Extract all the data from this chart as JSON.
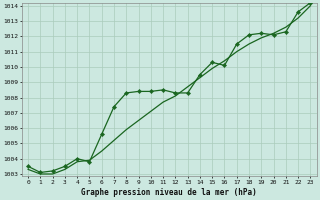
{
  "xlabel": "Graphe pression niveau de la mer (hPa)",
  "background_color": "#cce8e0",
  "grid_color": "#aaccbb",
  "line_color": "#1a6620",
  "marker_color": "#1a6620",
  "ylim_min": 1003,
  "ylim_max": 1014,
  "xlim_min": 0,
  "xlim_max": 23,
  "yticks": [
    1003,
    1004,
    1005,
    1006,
    1007,
    1008,
    1009,
    1010,
    1011,
    1012,
    1013,
    1014
  ],
  "xticks": [
    0,
    1,
    2,
    3,
    4,
    5,
    6,
    7,
    8,
    9,
    10,
    11,
    12,
    13,
    14,
    15,
    16,
    17,
    18,
    19,
    20,
    21,
    22,
    23
  ],
  "series1_x": [
    0,
    1,
    2,
    3,
    4,
    5,
    6,
    7,
    8,
    9,
    10,
    11,
    12,
    13,
    14,
    15,
    16,
    17,
    18,
    19,
    20,
    21,
    22,
    23
  ],
  "series1_y": [
    1003.5,
    1003.1,
    1003.2,
    1003.5,
    1004.0,
    1003.8,
    1005.6,
    1007.4,
    1008.3,
    1008.4,
    1008.4,
    1008.5,
    1008.3,
    1008.3,
    1009.5,
    1010.3,
    1010.1,
    1011.5,
    1012.1,
    1012.2,
    1012.1,
    1012.3,
    1013.6,
    1014.2
  ],
  "series2_x": [
    0,
    1,
    2,
    3,
    4,
    5,
    6,
    7,
    8,
    9,
    10,
    11,
    12,
    13,
    14,
    15,
    16,
    17,
    18,
    19,
    20,
    21,
    22,
    23
  ],
  "series2_y": [
    1003.3,
    1003.0,
    1003.0,
    1003.3,
    1003.8,
    1003.9,
    1004.5,
    1005.2,
    1005.9,
    1006.5,
    1007.1,
    1007.7,
    1008.1,
    1008.7,
    1009.3,
    1009.9,
    1010.4,
    1011.0,
    1011.5,
    1011.9,
    1012.2,
    1012.6,
    1013.2,
    1014.0
  ],
  "xlabel_fontsize": 5.5,
  "tick_fontsize": 4.5,
  "linewidth": 0.9,
  "markersize": 2.2
}
